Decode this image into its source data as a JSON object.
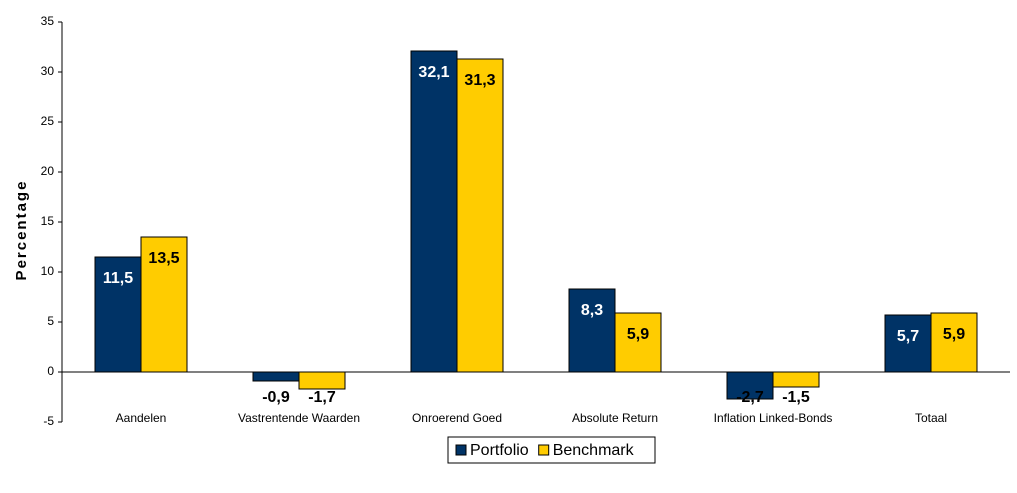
{
  "chart_data": {
    "type": "bar",
    "ylabel": "Percentage",
    "categories": [
      "Aandelen",
      "Vastrentende Waarden",
      "Onroerend Goed",
      "Absolute Return",
      "Inflation Linked-Bonds",
      "Totaal"
    ],
    "series": [
      {
        "name": "Portfolio",
        "color": "#003366",
        "values": [
          11.5,
          -0.9,
          32.1,
          8.3,
          -2.7,
          5.7
        ],
        "value_labels": [
          "11,5",
          "-0,9",
          "32,1",
          "8,3",
          "-2,7",
          "5,7"
        ]
      },
      {
        "name": "Benchmark",
        "color": "#ffcc00",
        "values": [
          13.5,
          -1.7,
          31.3,
          5.9,
          -1.5,
          5.9
        ],
        "value_labels": [
          "13,5",
          "-1,7",
          "31,3",
          "5,9",
          "-1,5",
          "5,9"
        ]
      }
    ],
    "ylim": [
      -5,
      35
    ],
    "yticks": [
      -5,
      0,
      5,
      10,
      15,
      20,
      25,
      30,
      35
    ],
    "legend": "bottom"
  }
}
